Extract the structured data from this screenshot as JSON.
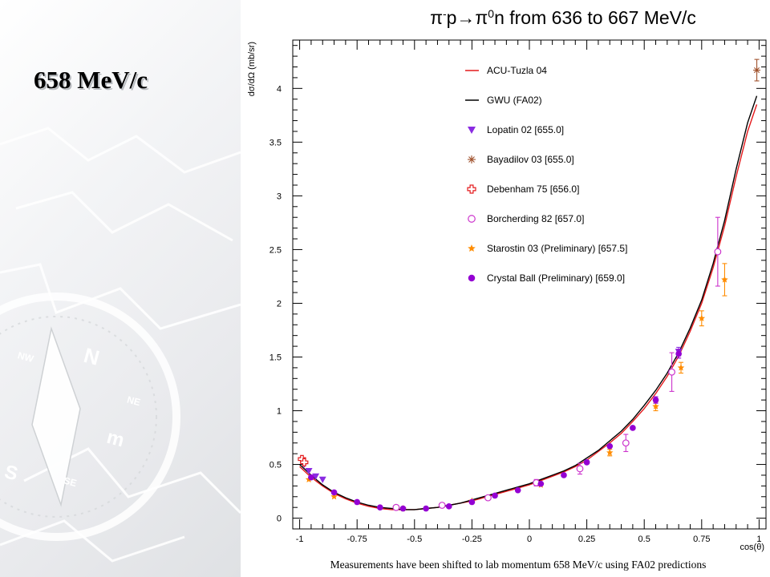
{
  "slide": {
    "heading": "658 MeV/c"
  },
  "chart_data": {
    "type": "scatter",
    "title": "π⁻p→π⁰n from 636 to 667 MeV/c",
    "title_parts": {
      "pi": "π",
      "minus": "-",
      "p_arrow": "p→π",
      "zero": "0",
      "rest": "n from 636 to 667 MeV/c"
    },
    "xlabel": "cos(θ)",
    "ylabel": "dσ/dΩ (mb/sr)",
    "xlim": [
      -1.03,
      1.03
    ],
    "ylim": [
      -0.1,
      4.45
    ],
    "xticks": [
      -1,
      -0.75,
      -0.5,
      -0.25,
      0,
      0.25,
      0.5,
      0.75,
      1
    ],
    "xtick_labels": [
      "-1",
      "-0.75",
      "-0.5",
      "-0.25",
      "0",
      "0.25",
      "0.5",
      "0.75",
      "1"
    ],
    "yticks": [
      0,
      0.5,
      1,
      1.5,
      2,
      2.5,
      3,
      3.5,
      4
    ],
    "ytick_labels": [
      "0",
      "0.5",
      "1",
      "1.5",
      "2",
      "2.5",
      "3",
      "3.5",
      "4"
    ],
    "grid": false,
    "legend_position": "top-right",
    "caption": "Measurements have been shifted to lab momentum 658 MeV/c using FA02 predictions",
    "curves": [
      {
        "name": "ACU-Tuzla 04",
        "color": "#e41a1c",
        "x": [
          -1.0,
          -0.95,
          -0.9,
          -0.85,
          -0.8,
          -0.75,
          -0.7,
          -0.65,
          -0.6,
          -0.55,
          -0.5,
          -0.45,
          -0.4,
          -0.35,
          -0.3,
          -0.25,
          -0.2,
          -0.15,
          -0.1,
          -0.05,
          0.0,
          0.05,
          0.1,
          0.15,
          0.2,
          0.25,
          0.3,
          0.35,
          0.4,
          0.45,
          0.5,
          0.55,
          0.6,
          0.65,
          0.7,
          0.75,
          0.8,
          0.85,
          0.9,
          0.95,
          0.99
        ],
        "y": [
          0.48,
          0.38,
          0.3,
          0.23,
          0.18,
          0.14,
          0.11,
          0.09,
          0.08,
          0.08,
          0.08,
          0.09,
          0.1,
          0.12,
          0.14,
          0.16,
          0.19,
          0.22,
          0.25,
          0.28,
          0.31,
          0.35,
          0.39,
          0.43,
          0.48,
          0.54,
          0.62,
          0.7,
          0.79,
          0.9,
          1.02,
          1.16,
          1.32,
          1.51,
          1.74,
          2.0,
          2.33,
          2.72,
          3.18,
          3.6,
          3.85
        ]
      },
      {
        "name": "GWU (FA02)",
        "color": "#000000",
        "x": [
          -1.0,
          -0.95,
          -0.9,
          -0.85,
          -0.8,
          -0.75,
          -0.7,
          -0.65,
          -0.6,
          -0.55,
          -0.5,
          -0.45,
          -0.4,
          -0.35,
          -0.3,
          -0.25,
          -0.2,
          -0.15,
          -0.1,
          -0.05,
          0.0,
          0.05,
          0.1,
          0.15,
          0.2,
          0.25,
          0.3,
          0.35,
          0.4,
          0.45,
          0.5,
          0.55,
          0.6,
          0.65,
          0.7,
          0.75,
          0.8,
          0.85,
          0.9,
          0.95,
          0.99
        ],
        "y": [
          0.5,
          0.4,
          0.31,
          0.24,
          0.19,
          0.15,
          0.12,
          0.1,
          0.09,
          0.08,
          0.08,
          0.09,
          0.1,
          0.12,
          0.14,
          0.17,
          0.2,
          0.23,
          0.26,
          0.29,
          0.32,
          0.36,
          0.4,
          0.44,
          0.49,
          0.56,
          0.63,
          0.72,
          0.81,
          0.92,
          1.05,
          1.19,
          1.35,
          1.54,
          1.77,
          2.03,
          2.37,
          2.77,
          3.25,
          3.68,
          3.93
        ]
      }
    ],
    "series": [
      {
        "name": "Lopatin 02  [655.0]",
        "color": "#8a2be2",
        "marker": "triangle-down",
        "points": [
          [
            -0.98,
            0.5,
            0.02
          ],
          [
            -0.96,
            0.44,
            0.02
          ],
          [
            -0.93,
            0.39,
            0.02
          ],
          [
            -0.9,
            0.36,
            0.02
          ],
          [
            0.65,
            1.55,
            0.04
          ]
        ]
      },
      {
        "name": "Bayadilov 03  [655.0]",
        "color": "#a0522d",
        "marker": "star-x",
        "points": [
          [
            0.99,
            4.17,
            0.1
          ]
        ]
      },
      {
        "name": "Debenham 75  [656.0]",
        "color": "#e41a1c",
        "marker": "open-cross",
        "points": [
          [
            -0.99,
            0.55,
            0.02
          ],
          [
            -0.98,
            0.52,
            0.02
          ]
        ]
      },
      {
        "name": "Borcherding 82  [657.0]",
        "color": "#cc33cc",
        "marker": "open-circle",
        "points": [
          [
            -0.58,
            0.1,
            0.02
          ],
          [
            -0.38,
            0.12,
            0.02
          ],
          [
            -0.18,
            0.19,
            0.02
          ],
          [
            0.03,
            0.33,
            0.03
          ],
          [
            0.22,
            0.46,
            0.05
          ],
          [
            0.42,
            0.7,
            0.08
          ],
          [
            0.62,
            1.36,
            0.18
          ],
          [
            0.82,
            2.48,
            0.32
          ]
        ]
      },
      {
        "name": "Starostin 03 (Preliminary)  [657.5]",
        "color": "#ff8c00",
        "marker": "star",
        "points": [
          [
            -0.96,
            0.36,
            0.02
          ],
          [
            -0.85,
            0.2,
            0.02
          ],
          [
            -0.55,
            0.09,
            0.02
          ],
          [
            -0.25,
            0.16,
            0.02
          ],
          [
            0.05,
            0.31,
            0.02
          ],
          [
            0.35,
            0.61,
            0.03
          ],
          [
            0.55,
            1.04,
            0.04
          ],
          [
            0.66,
            1.4,
            0.05
          ],
          [
            0.75,
            1.86,
            0.07
          ],
          [
            0.85,
            2.22,
            0.15
          ]
        ]
      },
      {
        "name": "Crystal Ball (Preliminary)  [659.0]",
        "color": "#9400d3",
        "marker": "filled-circle",
        "points": [
          [
            -0.95,
            0.38,
            0.01
          ],
          [
            -0.85,
            0.24,
            0.01
          ],
          [
            -0.75,
            0.15,
            0.01
          ],
          [
            -0.65,
            0.1,
            0.01
          ],
          [
            -0.55,
            0.09,
            0.01
          ],
          [
            -0.45,
            0.09,
            0.01
          ],
          [
            -0.35,
            0.11,
            0.01
          ],
          [
            -0.25,
            0.15,
            0.01
          ],
          [
            -0.15,
            0.21,
            0.01
          ],
          [
            -0.05,
            0.26,
            0.01
          ],
          [
            0.05,
            0.32,
            0.01
          ],
          [
            0.15,
            0.4,
            0.01
          ],
          [
            0.25,
            0.52,
            0.01
          ],
          [
            0.35,
            0.67,
            0.02
          ],
          [
            0.45,
            0.84,
            0.02
          ],
          [
            0.55,
            1.1,
            0.03
          ],
          [
            0.65,
            1.53,
            0.04
          ]
        ]
      }
    ]
  }
}
